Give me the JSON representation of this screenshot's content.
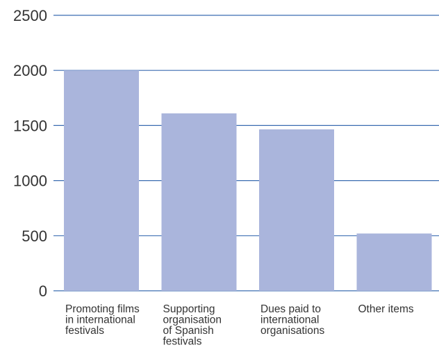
{
  "chart_data": {
    "type": "bar",
    "title": "",
    "xlabel": "",
    "ylabel": "",
    "ylim": [
      0,
      2500
    ],
    "yticks": [
      0,
      500,
      1000,
      1500,
      2000,
      2500
    ],
    "grid": true,
    "colors": {
      "bar": "#aab5dc",
      "grid": "#3a6cb0",
      "tick_text": "#333333"
    },
    "categories": [
      [
        "Promoting films",
        "in international",
        "festivals"
      ],
      [
        "Supporting",
        "organisation",
        "of Spanish",
        "festivals"
      ],
      [
        "Dues paid to",
        "international",
        "organisations"
      ],
      [
        "Other items"
      ]
    ],
    "values": [
      2000,
      1610,
      1465,
      520
    ]
  }
}
